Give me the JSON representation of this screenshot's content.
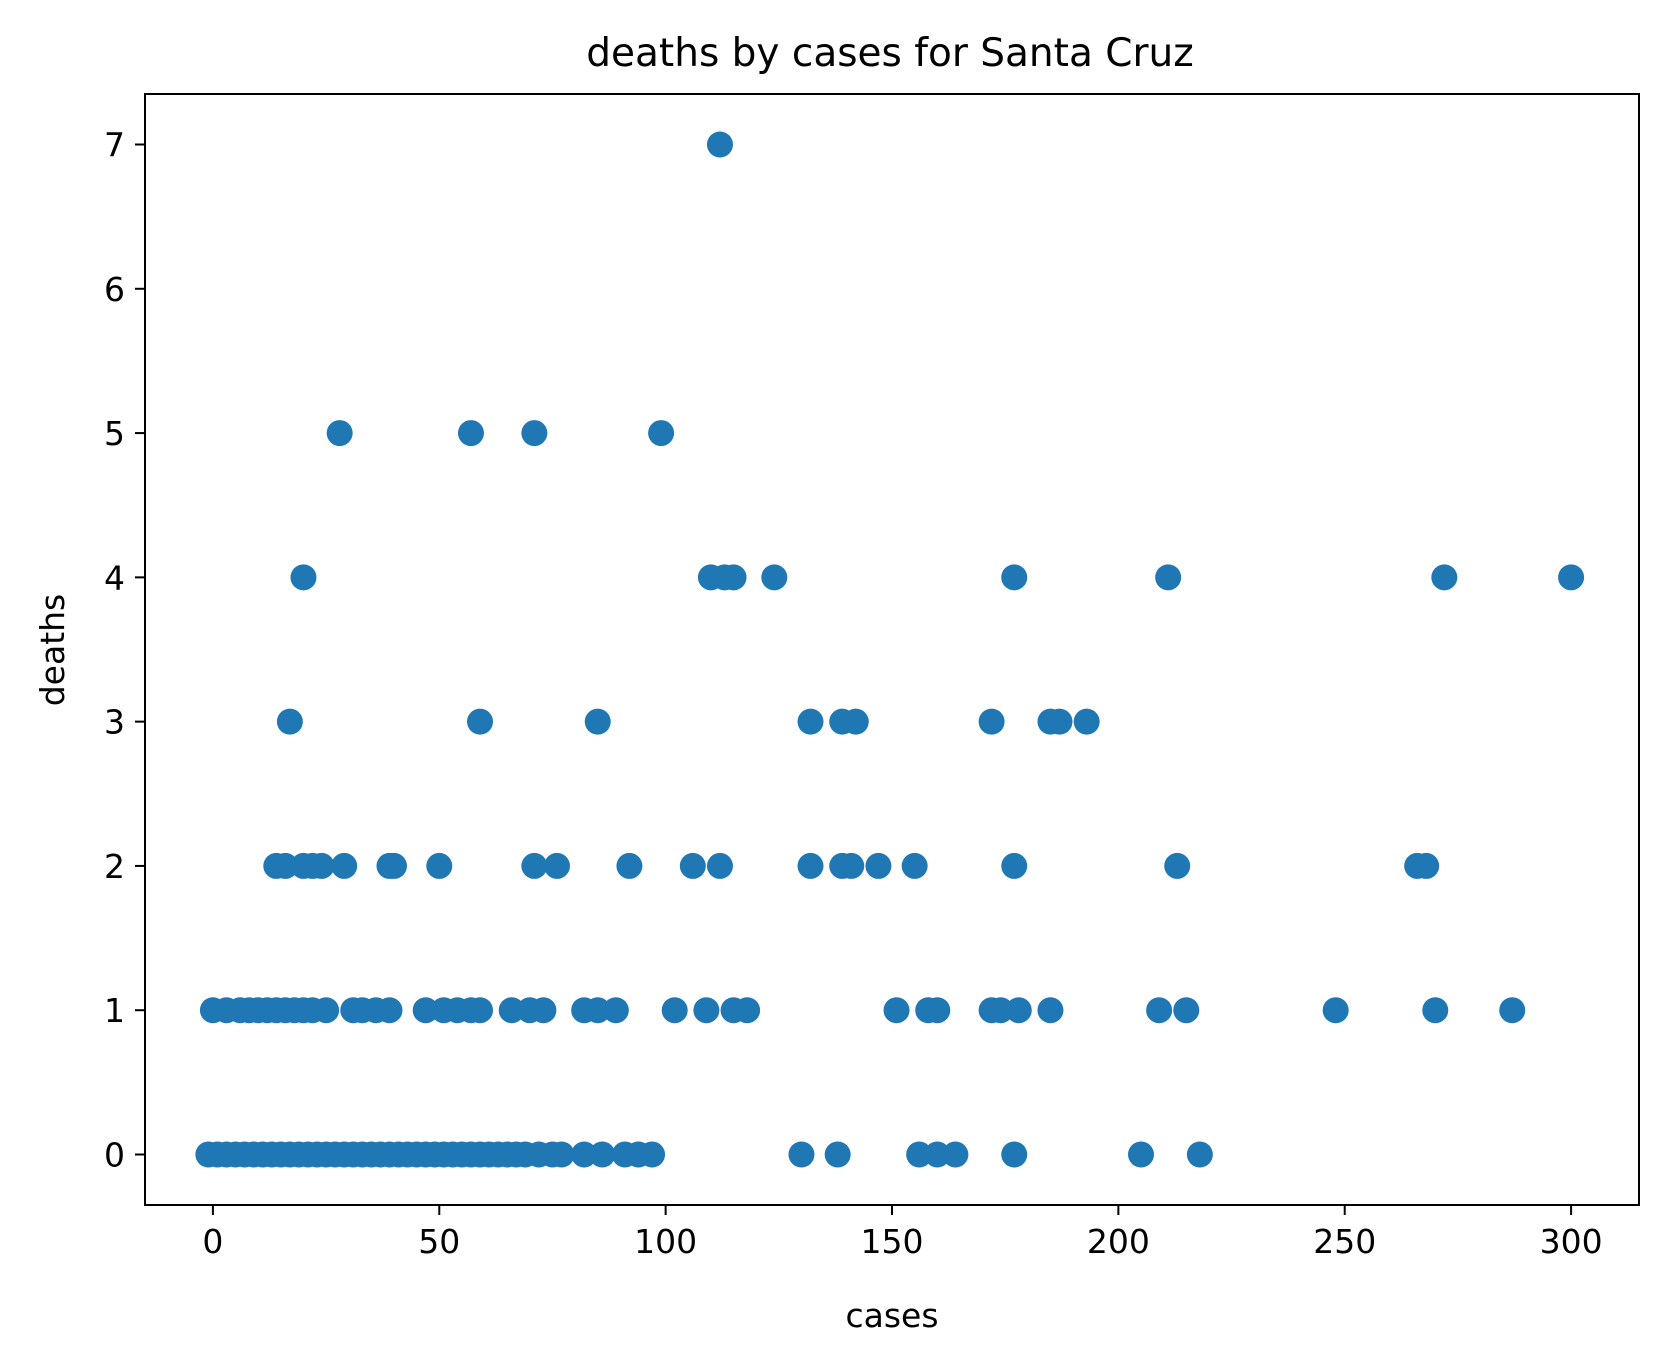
{
  "chart_data": {
    "type": "scatter",
    "title": "deaths by cases for Santa Cruz",
    "xlabel": "cases",
    "ylabel": "deaths",
    "xlim": [
      -15,
      315
    ],
    "ylim": [
      -0.35,
      7.35
    ],
    "xticks": [
      0,
      50,
      100,
      150,
      200,
      250,
      300
    ],
    "yticks": [
      0,
      1,
      2,
      3,
      4,
      5,
      6,
      7
    ],
    "grid": false,
    "marker_color": "#1f77b4",
    "points": [
      [
        112,
        7
      ],
      [
        28,
        5
      ],
      [
        57,
        5
      ],
      [
        71,
        5
      ],
      [
        99,
        5
      ],
      [
        20,
        4
      ],
      [
        110,
        4
      ],
      [
        113,
        4
      ],
      [
        115,
        4
      ],
      [
        124,
        4
      ],
      [
        177,
        4
      ],
      [
        211,
        4
      ],
      [
        272,
        4
      ],
      [
        300,
        4
      ],
      [
        17,
        3
      ],
      [
        59,
        3
      ],
      [
        85,
        3
      ],
      [
        132,
        3
      ],
      [
        139,
        3
      ],
      [
        142,
        3
      ],
      [
        172,
        3
      ],
      [
        185,
        3
      ],
      [
        187,
        3
      ],
      [
        193,
        3
      ],
      [
        14,
        2
      ],
      [
        16,
        2
      ],
      [
        20,
        2
      ],
      [
        22,
        2
      ],
      [
        24,
        2
      ],
      [
        29,
        2
      ],
      [
        39,
        2
      ],
      [
        40,
        2
      ],
      [
        50,
        2
      ],
      [
        71,
        2
      ],
      [
        76,
        2
      ],
      [
        92,
        2
      ],
      [
        106,
        2
      ],
      [
        112,
        2
      ],
      [
        132,
        2
      ],
      [
        139,
        2
      ],
      [
        141,
        2
      ],
      [
        147,
        2
      ],
      [
        155,
        2
      ],
      [
        177,
        2
      ],
      [
        213,
        2
      ],
      [
        266,
        2
      ],
      [
        268,
        2
      ],
      [
        0,
        1
      ],
      [
        3,
        1
      ],
      [
        6,
        1
      ],
      [
        8,
        1
      ],
      [
        10,
        1
      ],
      [
        12,
        1
      ],
      [
        14,
        1
      ],
      [
        16,
        1
      ],
      [
        18,
        1
      ],
      [
        20,
        1
      ],
      [
        22,
        1
      ],
      [
        25,
        1
      ],
      [
        31,
        1
      ],
      [
        33,
        1
      ],
      [
        36,
        1
      ],
      [
        39,
        1
      ],
      [
        47,
        1
      ],
      [
        51,
        1
      ],
      [
        54,
        1
      ],
      [
        57,
        1
      ],
      [
        59,
        1
      ],
      [
        66,
        1
      ],
      [
        70,
        1
      ],
      [
        73,
        1
      ],
      [
        82,
        1
      ],
      [
        85,
        1
      ],
      [
        89,
        1
      ],
      [
        102,
        1
      ],
      [
        109,
        1
      ],
      [
        115,
        1
      ],
      [
        118,
        1
      ],
      [
        151,
        1
      ],
      [
        158,
        1
      ],
      [
        160,
        1
      ],
      [
        172,
        1
      ],
      [
        174,
        1
      ],
      [
        178,
        1
      ],
      [
        185,
        1
      ],
      [
        209,
        1
      ],
      [
        215,
        1
      ],
      [
        248,
        1
      ],
      [
        270,
        1
      ],
      [
        287,
        1
      ],
      [
        -1,
        0
      ],
      [
        1,
        0
      ],
      [
        3,
        0
      ],
      [
        5,
        0
      ],
      [
        7,
        0
      ],
      [
        9,
        0
      ],
      [
        11,
        0
      ],
      [
        13,
        0
      ],
      [
        15,
        0
      ],
      [
        17,
        0
      ],
      [
        19,
        0
      ],
      [
        21,
        0
      ],
      [
        23,
        0
      ],
      [
        25,
        0
      ],
      [
        27,
        0
      ],
      [
        29,
        0
      ],
      [
        31,
        0
      ],
      [
        33,
        0
      ],
      [
        35,
        0
      ],
      [
        37,
        0
      ],
      [
        39,
        0
      ],
      [
        41,
        0
      ],
      [
        43,
        0
      ],
      [
        45,
        0
      ],
      [
        47,
        0
      ],
      [
        49,
        0
      ],
      [
        51,
        0
      ],
      [
        53,
        0
      ],
      [
        55,
        0
      ],
      [
        57,
        0
      ],
      [
        59,
        0
      ],
      [
        61,
        0
      ],
      [
        63,
        0
      ],
      [
        65,
        0
      ],
      [
        67,
        0
      ],
      [
        69,
        0
      ],
      [
        72,
        0
      ],
      [
        75,
        0
      ],
      [
        77,
        0
      ],
      [
        82,
        0
      ],
      [
        86,
        0
      ],
      [
        91,
        0
      ],
      [
        94,
        0
      ],
      [
        97,
        0
      ],
      [
        130,
        0
      ],
      [
        138,
        0
      ],
      [
        156,
        0
      ],
      [
        160,
        0
      ],
      [
        164,
        0
      ],
      [
        177,
        0
      ],
      [
        205,
        0
      ],
      [
        218,
        0
      ]
    ]
  }
}
